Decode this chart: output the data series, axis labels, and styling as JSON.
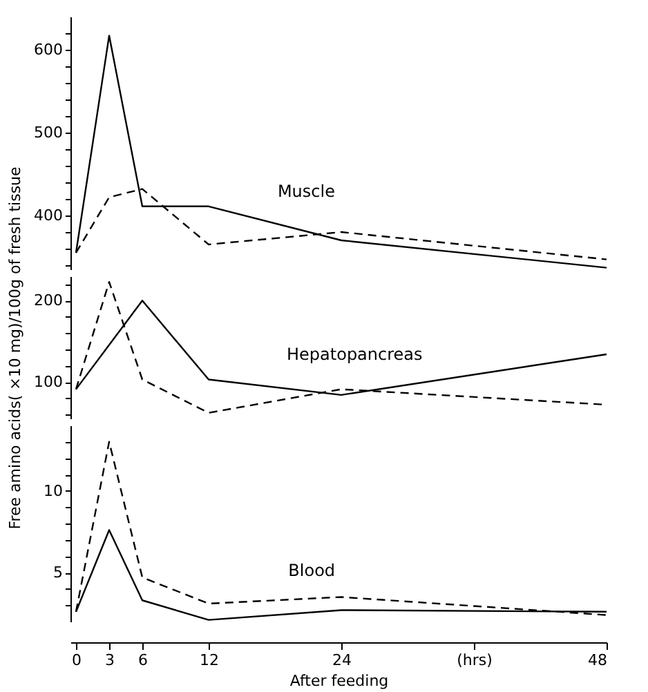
{
  "chart_data": [
    {
      "type": "line",
      "x": [
        0,
        3,
        6,
        12,
        24,
        48
      ],
      "xlim": [
        -0.5,
        48
      ],
      "ylim": [
        335,
        640
      ],
      "tick_labels": "y",
      "marker": "none",
      "grid": false,
      "legend": false,
      "yticks": [
        {
          "value": 340,
          "label": null
        },
        {
          "value": 360,
          "label": null
        },
        {
          "value": 380,
          "label": null
        },
        400,
        {
          "value": 420,
          "label": null
        },
        {
          "value": 440,
          "label": null
        },
        {
          "value": 460,
          "label": null
        },
        {
          "value": 480,
          "label": null
        },
        500,
        {
          "value": 520,
          "label": null
        },
        {
          "value": 540,
          "label": null
        },
        {
          "value": 560,
          "label": null
        },
        {
          "value": 580,
          "label": null
        },
        600,
        {
          "value": 620,
          "label": null
        }
      ],
      "annotations": [
        "Muscle"
      ],
      "series": [
        {
          "color": "#000000",
          "line_style": "solid",
          "values": [
            355,
            617,
            411,
            411,
            370,
            337
          ]
        },
        {
          "color": "#000000",
          "line_style": "dashed",
          "values": [
            355,
            422,
            432,
            365,
            380,
            347
          ]
        }
      ]
    },
    {
      "type": "line",
      "x": [
        0,
        3,
        6,
        12,
        24,
        48
      ],
      "xlim": [
        -0.5,
        48
      ],
      "ylim": [
        55,
        230
      ],
      "tick_labels": "y",
      "marker": "none",
      "grid": false,
      "legend": false,
      "ylabel": "Free amino acids( ×10 mg)/100g of fresh tissue",
      "yticks": [
        {
          "value": 60,
          "label": null
        },
        {
          "value": 80,
          "label": null
        },
        100,
        {
          "value": 120,
          "label": null
        },
        {
          "value": 140,
          "label": null
        },
        {
          "value": 160,
          "label": null
        },
        {
          "value": 180,
          "label": null
        },
        200,
        {
          "value": 220,
          "label": null
        }
      ],
      "annotations": [
        "Hepatopancreas"
      ],
      "series": [
        {
          "color": "#000000",
          "line_style": "solid",
          "x": [
            0,
            6,
            12,
            24,
            48
          ],
          "values": [
            91,
            200,
            103,
            84,
            134
          ]
        },
        {
          "color": "#000000",
          "line_style": "dashed",
          "values": [
            91,
            223,
            103,
            62,
            91,
            72
          ]
        }
      ]
    },
    {
      "type": "line",
      "x": [
        0,
        3,
        6,
        12,
        24,
        48
      ],
      "xlim": [
        -0.5,
        48
      ],
      "ylim": [
        2,
        14
      ],
      "marker": "none",
      "grid": false,
      "legend": false,
      "xlabel": "After feeding",
      "xticks": [
        0,
        3,
        6,
        12,
        24,
        {
          "value": 36,
          "label": "(hrs)"
        },
        48
      ],
      "yticks": [
        {
          "value": 3,
          "label": null
        },
        {
          "value": 4,
          "label": null
        },
        5,
        {
          "value": 6,
          "label": null
        },
        {
          "value": 7,
          "label": null
        },
        {
          "value": 8,
          "label": null
        },
        {
          "value": 9,
          "label": null
        },
        10,
        {
          "value": 11,
          "label": null
        },
        {
          "value": 12,
          "label": null
        },
        {
          "value": 13,
          "label": null
        }
      ],
      "annotations": [
        "Blood"
      ],
      "series": [
        {
          "color": "#000000",
          "line_style": "solid",
          "values": [
            2.6,
            7.6,
            3.3,
            2.1,
            2.7,
            2.6
          ]
        },
        {
          "color": "#000000",
          "line_style": "dashed",
          "values": [
            2.6,
            13.0,
            4.7,
            3.1,
            3.5,
            2.4
          ]
        }
      ]
    }
  ]
}
